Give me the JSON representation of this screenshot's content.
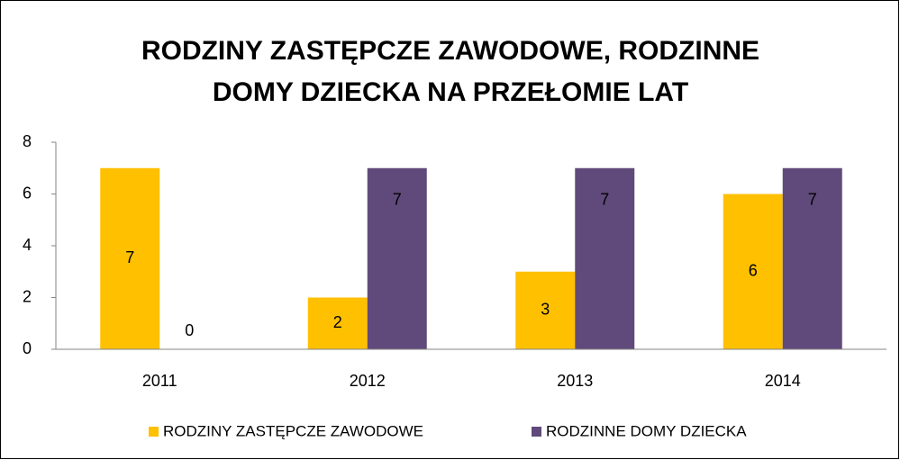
{
  "chart_data": {
    "type": "bar",
    "title": "RODZINY ZASTĘPCZE ZAWODOWE, RODZINNE DOMY DZIECKA NA PRZEŁOMIE LAT",
    "categories": [
      "2011",
      "2012",
      "2013",
      "2014"
    ],
    "series": [
      {
        "name": "RODZINY ZASTĘPCZE ZAWODOWE",
        "color": "#ffc000",
        "values": [
          7,
          2,
          3,
          6
        ]
      },
      {
        "name": "RODZINNE DOMY DZIECKA",
        "color": "#604a7b",
        "values": [
          0,
          7,
          7,
          7
        ]
      }
    ],
    "ylim": [
      0,
      8
    ],
    "yticks": [
      0,
      2,
      4,
      6,
      8
    ],
    "grid": false,
    "legend": "bottom"
  }
}
